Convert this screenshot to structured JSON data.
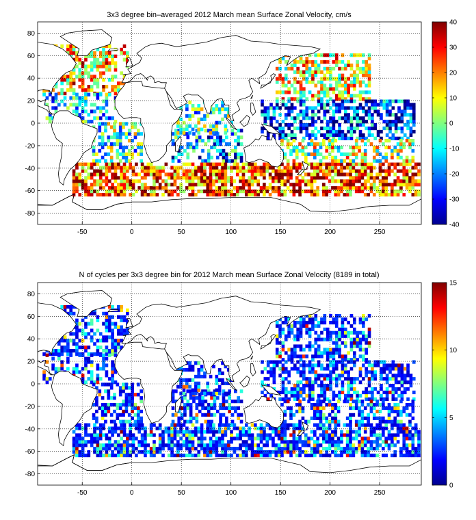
{
  "chart_data": [
    {
      "type": "heatmap",
      "title": "3x3 degree bin–averaged 2012 March mean Surface Zonal Velocity, cm/s",
      "xlabel": "",
      "ylabel": "",
      "xlim": [
        -95,
        292
      ],
      "ylim": [
        -90,
        90
      ],
      "xticks": [
        "-50",
        "0",
        "50",
        "100",
        "150",
        "200",
        "250"
      ],
      "yticks": [
        "80",
        "60",
        "40",
        "20",
        "0",
        "-20",
        "-40",
        "-60",
        "-80"
      ],
      "grid": true,
      "colorbar": {
        "min": -40,
        "max": 40,
        "ticks": [
          "40",
          "30",
          "20",
          "10",
          "0",
          "-10",
          "-20",
          "-30",
          "-40"
        ]
      },
      "bin_size_deg": 3,
      "bands": [
        {
          "lat": [
            25,
            70
          ],
          "lon": [
            -90,
            -5
          ],
          "value": 15,
          "density": 0.55
        },
        {
          "lat": [
            0,
            25
          ],
          "lon": [
            -90,
            -15
          ],
          "value": -12,
          "density": 0.45
        },
        {
          "lat": [
            -35,
            0
          ],
          "lon": [
            -40,
            10
          ],
          "value": -5,
          "density": 0.5
        },
        {
          "lat": [
            -35,
            -5
          ],
          "lon": [
            40,
            110
          ],
          "value": -20,
          "density": 0.5
        },
        {
          "lat": [
            -10,
            20
          ],
          "lon": [
            45,
            100
          ],
          "value": -5,
          "density": 0.45
        },
        {
          "lat": [
            -65,
            -35
          ],
          "lon": [
            -60,
            290
          ],
          "value": 25,
          "density": 0.7
        },
        {
          "lat": [
            20,
            60
          ],
          "lon": [
            145,
            240
          ],
          "value": 10,
          "density": 0.55
        },
        {
          "lat": [
            -15,
            20
          ],
          "lon": [
            130,
            285
          ],
          "value": -25,
          "density": 0.6
        },
        {
          "lat": [
            -35,
            -15
          ],
          "lon": [
            150,
            285
          ],
          "value": 5,
          "density": 0.45
        }
      ]
    },
    {
      "type": "heatmap",
      "title": "N of cycles per 3x3 degree bin for 2012 March mean Surface Zonal Velocity (8189 in total)",
      "xlabel": "",
      "ylabel": "",
      "xlim": [
        -95,
        292
      ],
      "ylim": [
        -90,
        90
      ],
      "xticks": [
        "-50",
        "0",
        "50",
        "100",
        "150",
        "200",
        "250"
      ],
      "yticks": [
        "80",
        "60",
        "40",
        "20",
        "0",
        "-20",
        "-40",
        "-60",
        "-80"
      ],
      "grid": true,
      "total_cycles": 8189,
      "colorbar": {
        "min": 0,
        "max": 15,
        "ticks": [
          "15",
          "10",
          "5",
          "0"
        ]
      },
      "bin_size_deg": 3,
      "bands": [
        {
          "lat": [
            25,
            70
          ],
          "lon": [
            -90,
            -5
          ],
          "value": 3,
          "density": 0.55
        },
        {
          "lat": [
            0,
            25
          ],
          "lon": [
            -90,
            -15
          ],
          "value": 2,
          "density": 0.45
        },
        {
          "lat": [
            -35,
            0
          ],
          "lon": [
            -40,
            10
          ],
          "value": 2,
          "density": 0.55
        },
        {
          "lat": [
            -35,
            -5
          ],
          "lon": [
            40,
            110
          ],
          "value": 2,
          "density": 0.55
        },
        {
          "lat": [
            -10,
            20
          ],
          "lon": [
            45,
            100
          ],
          "value": 2,
          "density": 0.45
        },
        {
          "lat": [
            -65,
            -35
          ],
          "lon": [
            -60,
            290
          ],
          "value": 2,
          "density": 0.7
        },
        {
          "lat": [
            20,
            60
          ],
          "lon": [
            145,
            240
          ],
          "value": 3,
          "density": 0.55
        },
        {
          "lat": [
            -15,
            20
          ],
          "lon": [
            130,
            285
          ],
          "value": 2,
          "density": 0.6
        },
        {
          "lat": [
            -35,
            -15
          ],
          "lon": [
            150,
            285
          ],
          "value": 2,
          "density": 0.5
        }
      ]
    }
  ]
}
